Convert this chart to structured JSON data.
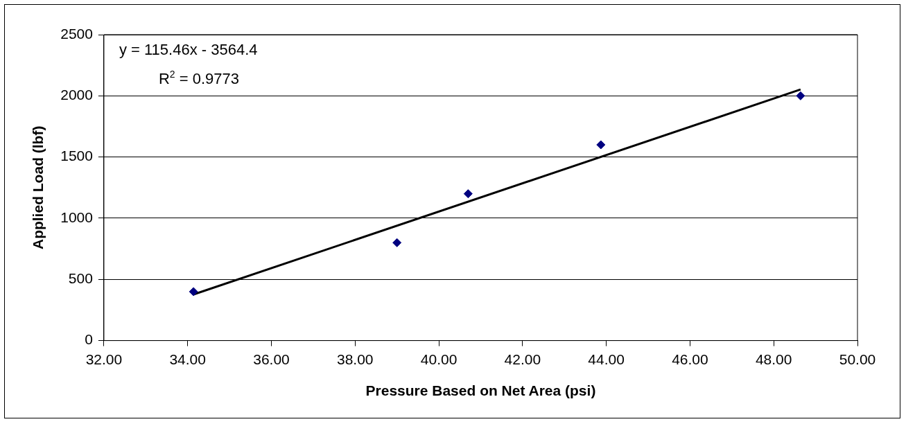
{
  "chart_data": {
    "type": "scatter",
    "xlabel": "Pressure Based on Net Area (psi)",
    "ylabel": "Applied Load (lbf)",
    "series": [
      {
        "type": "scatter",
        "color": "#000080",
        "marker": "diamond",
        "x": [
          34.14,
          39.0,
          40.7,
          43.87,
          48.64
        ],
        "values": [
          400,
          800,
          1200,
          1600,
          2000
        ]
      },
      {
        "type": "line",
        "color": "#000000",
        "marker": "none",
        "line_style": "solid",
        "x": [
          34.14,
          48.64
        ],
        "values": [
          377,
          2052
        ]
      }
    ],
    "annotations": [
      "y = 115.46x - 3564.4",
      "R$^{2}$ = 0.9773"
    ],
    "xlim": [
      32,
      50
    ],
    "xticks": [
      {
        "value": 32,
        "label": "32.00"
      },
      {
        "value": 34,
        "label": "34.00"
      },
      {
        "value": 36,
        "label": "36.00"
      },
      {
        "value": 38,
        "label": "38.00"
      },
      {
        "value": 40,
        "label": "40.00"
      },
      {
        "value": 42,
        "label": "42.00"
      },
      {
        "value": 44,
        "label": "44.00"
      },
      {
        "value": 46,
        "label": "46.00"
      },
      {
        "value": 48,
        "label": "48.00"
      },
      {
        "value": 50,
        "label": "50.00"
      }
    ],
    "ylim": [
      0,
      2500
    ],
    "yticks": [
      0,
      500,
      1000,
      1500,
      2000,
      2500
    ],
    "grid": "y"
  }
}
